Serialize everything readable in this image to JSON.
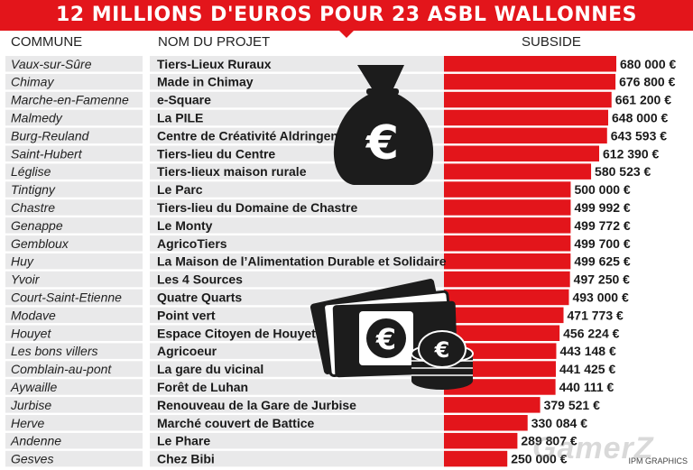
{
  "title": "12 MILLIONS D'EUROS POUR 23 ASBL WALLONNES",
  "headers": {
    "commune": "COMMUNE",
    "projet": "NOM DU PROJET",
    "subside": "SUBSIDE"
  },
  "credit": "IPM GRAPHICS",
  "watermark": "GamerZ",
  "icons": [
    "money-bag-euro-icon",
    "banknotes-coins-euro-icon"
  ],
  "colors": {
    "bar": "#e3151b",
    "row": "#e9e9ea",
    "icon": "#1c1c1c"
  },
  "chart_data": {
    "type": "bar",
    "orientation": "horizontal",
    "categories": [
      "Vaux-sur-Sûre",
      "Chimay",
      "Marche-en-Famenne",
      "Malmedy",
      "Burg-Reuland",
      "Saint-Hubert",
      "Léglise",
      "Tintigny",
      "Chastre",
      "Genappe",
      "Gembloux",
      "Huy",
      "Yvoir",
      "Court-Saint-Etienne",
      "Modave",
      "Houyet",
      "Les bons villers",
      "Comblain-au-pont",
      "Aywaille",
      "Jurbise",
      "Herve",
      "Andenne",
      "Gesves"
    ],
    "projects": [
      "Tiers-Lieux Ruraux",
      "Made in Chimay",
      "e-Square",
      "La PILE",
      "Centre de Créativité Aldringen",
      "Tiers-lieu du Centre",
      "Tiers-lieux maison rurale",
      "Le Parc",
      "Tiers-lieu du Domaine de Chastre",
      "Le Monty",
      "AgricoTiers",
      "La Maison de l’Alimentation Durable et Solidaire",
      "Les 4 Sources",
      "Quatre Quarts",
      "Point vert",
      "Espace Citoyen de Houyet",
      "Agricoeur",
      "La gare du vicinal",
      "Forêt de Luhan",
      "Renouveau de la Gare de Jurbise",
      "Marché couvert de Battice",
      "Le Phare",
      "Chez Bibi"
    ],
    "values": [
      680000,
      676800,
      661200,
      648000,
      643593,
      612390,
      580523,
      500000,
      499992,
      499772,
      499700,
      499625,
      497250,
      493000,
      471773,
      456224,
      443148,
      441425,
      440111,
      379521,
      330084,
      289807,
      250000
    ],
    "labels": [
      "680 000 €",
      "676 800 €",
      "661 200 €",
      "648 000 €",
      "643 593 €",
      "612 390 €",
      "580 523 €",
      "500 000 €",
      "499 992 €",
      "499 772 €",
      "499 700 €",
      "499 625 €",
      "497 250 €",
      "493 000 €",
      "471 773 €",
      "456 224 €",
      "443 148 €",
      "441 425 €",
      "440 111 €",
      "379 521 €",
      "330 084 €",
      "289 807 €",
      "250 000 €"
    ],
    "xlabel": "",
    "ylabel": "",
    "xlim": [
      0,
      680000
    ]
  }
}
